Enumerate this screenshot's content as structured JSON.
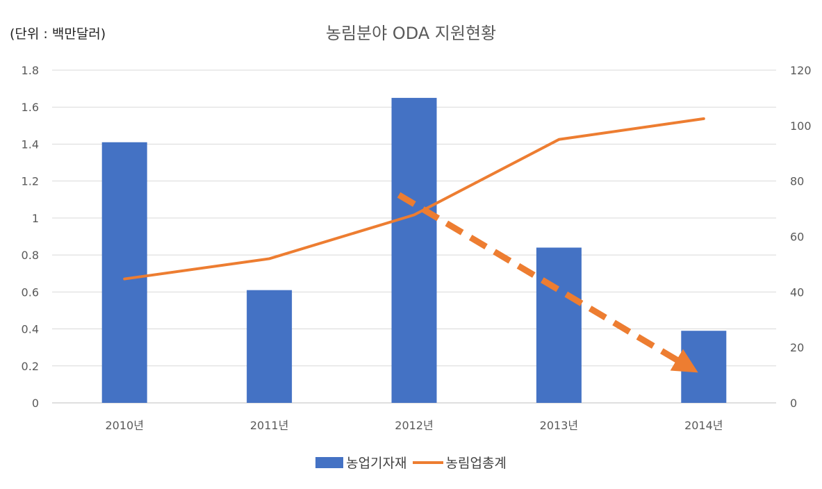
{
  "unit_label": "(단위 : 백만달러)",
  "title": "농림분야 ODA 지원현황",
  "colors": {
    "bar": "#4472C4",
    "line": "#ED7D31",
    "grid": "#d9d9d9",
    "axis_text": "#595959"
  },
  "legend": {
    "bar_label": "농업기자재",
    "line_label": "농림업총계",
    "placement": "bottom"
  },
  "chart_data": {
    "type": "bar",
    "title": "농림분야 ODA 지원현황",
    "categories": [
      "2010년",
      "2011년",
      "2012년",
      "2013년",
      "2014년"
    ],
    "series": [
      {
        "name": "농업기자재",
        "type": "bar",
        "axis": "left",
        "values": [
          1.41,
          0.61,
          1.65,
          0.84,
          0.39
        ]
      },
      {
        "name": "농림업총계",
        "type": "line",
        "axis": "right",
        "values": [
          44.7,
          52,
          67.8,
          95,
          102.5
        ]
      }
    ],
    "y_left": {
      "ticks": [
        "0",
        "0.2",
        "0.4",
        "0.6",
        "0.8",
        "1",
        "1.2",
        "1.4",
        "1.6",
        "1.8"
      ],
      "ylim": [
        0,
        1.8
      ]
    },
    "y_right": {
      "ticks": [
        "0",
        "20",
        "40",
        "60",
        "80",
        "100",
        "120"
      ],
      "ylim": [
        0,
        120
      ]
    },
    "trend_arrow": {
      "style": "dashed",
      "from_category": "2012년",
      "to_category": "2014년",
      "from_value_right": 75,
      "to_value_right": 13
    },
    "grid": true,
    "legend_position": "bottom"
  }
}
